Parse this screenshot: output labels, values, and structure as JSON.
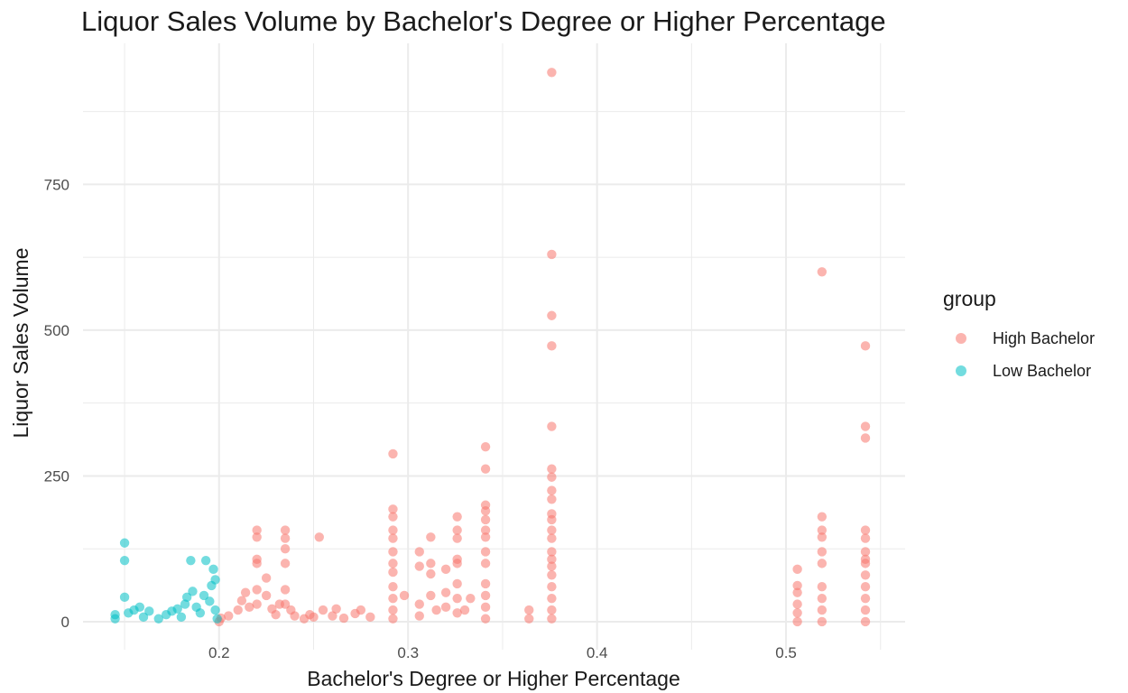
{
  "chart_data": {
    "type": "scatter",
    "title": "Liquor Sales Volume by Bachelor's Degree or Higher Percentage",
    "xlabel": "Bachelor's Degree or Higher Percentage",
    "ylabel": "Liquor Sales Volume",
    "xlim": [
      0.128,
      0.563
    ],
    "ylim": [
      -48,
      992
    ],
    "x_ticks": [
      "0.2",
      "0.3",
      "0.4",
      "0.5"
    ],
    "y_ticks": [
      "0",
      "250",
      "500",
      "750"
    ],
    "grid": true,
    "legend": {
      "title": "group",
      "position": "right"
    },
    "series": [
      {
        "name": "High Bachelor",
        "color": "#F8766D",
        "points": [
          [
            0.2,
            0
          ],
          [
            0.201,
            6
          ],
          [
            0.205,
            10
          ],
          [
            0.21,
            20
          ],
          [
            0.212,
            36
          ],
          [
            0.214,
            50
          ],
          [
            0.216,
            25
          ],
          [
            0.22,
            30
          ],
          [
            0.22,
            55
          ],
          [
            0.22,
            100
          ],
          [
            0.22,
            107
          ],
          [
            0.22,
            145
          ],
          [
            0.22,
            157
          ],
          [
            0.225,
            75
          ],
          [
            0.225,
            45
          ],
          [
            0.228,
            22
          ],
          [
            0.23,
            12
          ],
          [
            0.232,
            30
          ],
          [
            0.235,
            30
          ],
          [
            0.235,
            55
          ],
          [
            0.235,
            100
          ],
          [
            0.235,
            125
          ],
          [
            0.235,
            143
          ],
          [
            0.235,
            157
          ],
          [
            0.238,
            20
          ],
          [
            0.24,
            10
          ],
          [
            0.245,
            5
          ],
          [
            0.248,
            12
          ],
          [
            0.25,
            8
          ],
          [
            0.253,
            145
          ],
          [
            0.255,
            20
          ],
          [
            0.26,
            10
          ],
          [
            0.262,
            22
          ],
          [
            0.266,
            6
          ],
          [
            0.272,
            14
          ],
          [
            0.275,
            20
          ],
          [
            0.28,
            8
          ],
          [
            0.292,
            288
          ],
          [
            0.292,
            193
          ],
          [
            0.292,
            180
          ],
          [
            0.292,
            157
          ],
          [
            0.292,
            143
          ],
          [
            0.292,
            120
          ],
          [
            0.292,
            100
          ],
          [
            0.292,
            85
          ],
          [
            0.292,
            60
          ],
          [
            0.292,
            40
          ],
          [
            0.292,
            20
          ],
          [
            0.292,
            5
          ],
          [
            0.298,
            45
          ],
          [
            0.306,
            120
          ],
          [
            0.306,
            95
          ],
          [
            0.306,
            30
          ],
          [
            0.306,
            10
          ],
          [
            0.312,
            145
          ],
          [
            0.312,
            100
          ],
          [
            0.312,
            82
          ],
          [
            0.312,
            45
          ],
          [
            0.315,
            20
          ],
          [
            0.32,
            90
          ],
          [
            0.32,
            50
          ],
          [
            0.32,
            25
          ],
          [
            0.326,
            180
          ],
          [
            0.326,
            157
          ],
          [
            0.326,
            143
          ],
          [
            0.326,
            107
          ],
          [
            0.326,
            100
          ],
          [
            0.326,
            65
          ],
          [
            0.326,
            40
          ],
          [
            0.326,
            15
          ],
          [
            0.33,
            20
          ],
          [
            0.333,
            40
          ],
          [
            0.341,
            300
          ],
          [
            0.341,
            262
          ],
          [
            0.341,
            200
          ],
          [
            0.341,
            190
          ],
          [
            0.341,
            175
          ],
          [
            0.341,
            157
          ],
          [
            0.341,
            145
          ],
          [
            0.341,
            120
          ],
          [
            0.341,
            100
          ],
          [
            0.341,
            65
          ],
          [
            0.341,
            45
          ],
          [
            0.341,
            25
          ],
          [
            0.341,
            5
          ],
          [
            0.364,
            20
          ],
          [
            0.364,
            5
          ],
          [
            0.376,
            942
          ],
          [
            0.376,
            630
          ],
          [
            0.376,
            525
          ],
          [
            0.376,
            473
          ],
          [
            0.376,
            335
          ],
          [
            0.376,
            262
          ],
          [
            0.376,
            248
          ],
          [
            0.376,
            225
          ],
          [
            0.376,
            210
          ],
          [
            0.376,
            185
          ],
          [
            0.376,
            175
          ],
          [
            0.376,
            157
          ],
          [
            0.376,
            143
          ],
          [
            0.376,
            120
          ],
          [
            0.376,
            107
          ],
          [
            0.376,
            95
          ],
          [
            0.376,
            80
          ],
          [
            0.376,
            60
          ],
          [
            0.376,
            40
          ],
          [
            0.376,
            20
          ],
          [
            0.376,
            5
          ],
          [
            0.506,
            90
          ],
          [
            0.506,
            62
          ],
          [
            0.506,
            50
          ],
          [
            0.506,
            30
          ],
          [
            0.506,
            15
          ],
          [
            0.506,
            0
          ],
          [
            0.519,
            600
          ],
          [
            0.519,
            180
          ],
          [
            0.519,
            157
          ],
          [
            0.519,
            145
          ],
          [
            0.519,
            120
          ],
          [
            0.519,
            100
          ],
          [
            0.519,
            60
          ],
          [
            0.519,
            40
          ],
          [
            0.519,
            20
          ],
          [
            0.519,
            0
          ],
          [
            0.542,
            473
          ],
          [
            0.542,
            335
          ],
          [
            0.542,
            315
          ],
          [
            0.542,
            157
          ],
          [
            0.542,
            143
          ],
          [
            0.542,
            120
          ],
          [
            0.542,
            107
          ],
          [
            0.542,
            100
          ],
          [
            0.542,
            80
          ],
          [
            0.542,
            60
          ],
          [
            0.542,
            40
          ],
          [
            0.542,
            20
          ],
          [
            0.542,
            0
          ]
        ]
      },
      {
        "name": "Low Bachelor",
        "color": "#00BFC4",
        "points": [
          [
            0.145,
            5
          ],
          [
            0.145,
            12
          ],
          [
            0.15,
            135
          ],
          [
            0.15,
            105
          ],
          [
            0.15,
            42
          ],
          [
            0.152,
            15
          ],
          [
            0.155,
            20
          ],
          [
            0.158,
            25
          ],
          [
            0.16,
            8
          ],
          [
            0.163,
            18
          ],
          [
            0.168,
            5
          ],
          [
            0.172,
            12
          ],
          [
            0.175,
            18
          ],
          [
            0.178,
            22
          ],
          [
            0.18,
            8
          ],
          [
            0.182,
            30
          ],
          [
            0.183,
            42
          ],
          [
            0.185,
            105
          ],
          [
            0.186,
            52
          ],
          [
            0.188,
            25
          ],
          [
            0.19,
            15
          ],
          [
            0.192,
            45
          ],
          [
            0.193,
            105
          ],
          [
            0.195,
            35
          ],
          [
            0.196,
            62
          ],
          [
            0.197,
            90
          ],
          [
            0.198,
            72
          ],
          [
            0.198,
            20
          ],
          [
            0.199,
            5
          ]
        ]
      }
    ]
  }
}
